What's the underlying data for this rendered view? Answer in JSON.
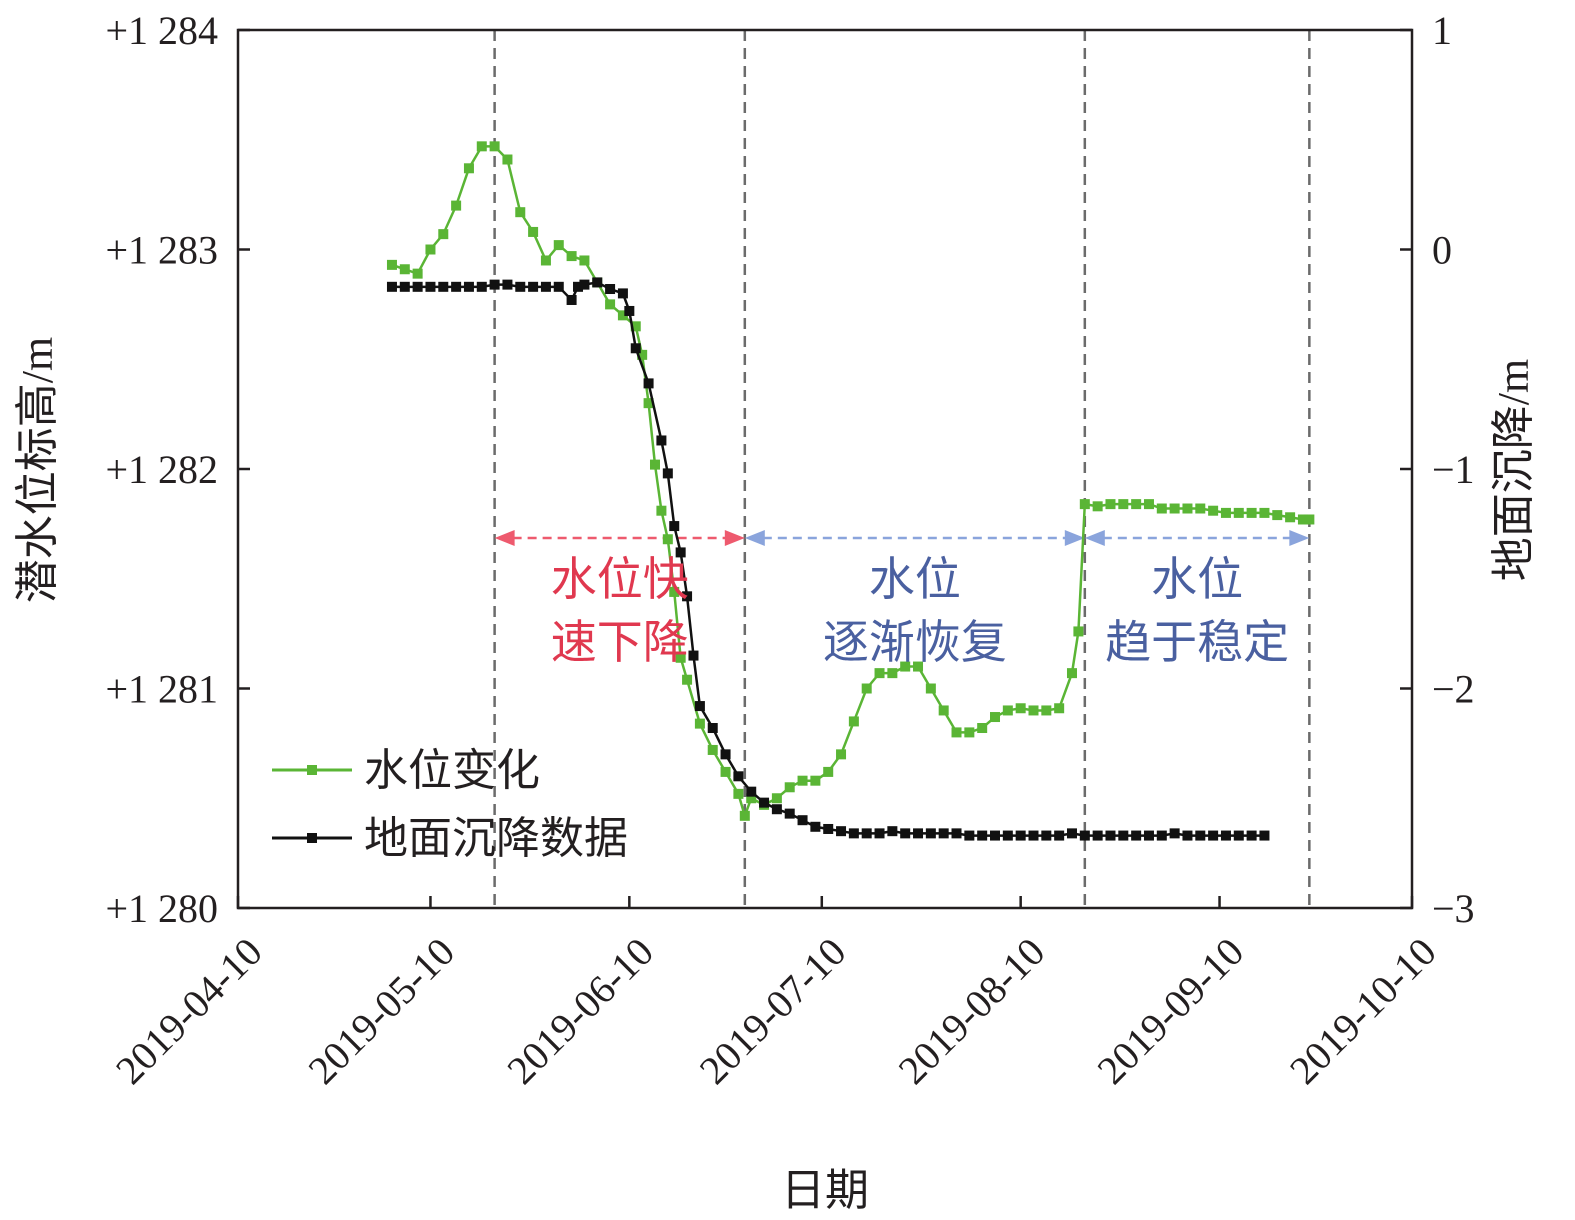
{
  "colors": {
    "water": "#5ab535",
    "settle": "#111111",
    "annot_red": "#e0384f",
    "annot_blue": "#4a60a0",
    "arrow_red": "#ee5a6e",
    "arrow_blue": "#8aa4dc",
    "divider": "#6b6b6b"
  },
  "chart_data": {
    "type": "line",
    "xlabel": "日期",
    "ylabel_left": "潜水位标高/m",
    "ylabel_right": "地面沉降/m",
    "x_ticks": [
      "2019-04-10",
      "2019-05-10",
      "2019-06-10",
      "2019-07-10",
      "2019-08-10",
      "2019-09-10",
      "2019-10-10"
    ],
    "xlim": [
      "2019-04-10",
      "2019-10-10"
    ],
    "y_left_ticks": [
      "+1 280",
      "+1 281",
      "+1 282",
      "+1 283",
      "+1 284"
    ],
    "y_left_lim": [
      1280,
      1284
    ],
    "y_right_ticks": [
      "1",
      "0",
      "−1",
      "−2",
      "−3"
    ],
    "y_right_lim": [
      -3,
      1
    ],
    "dividers": [
      "2019-05-20",
      "2019-06-28",
      "2019-08-20",
      "2019-09-24"
    ],
    "phases": [
      {
        "line1": "水位快",
        "line2": "速下降",
        "from": "2019-05-20",
        "to": "2019-06-28",
        "color": "red"
      },
      {
        "line1": "水位",
        "line2": "逐渐恢复",
        "from": "2019-06-28",
        "to": "2019-08-20",
        "color": "blue"
      },
      {
        "line1": "水位",
        "line2": "趋于稳定",
        "from": "2019-08-20",
        "to": "2019-09-24",
        "color": "blue"
      }
    ],
    "legend": [
      {
        "label": "水位变化",
        "series": "water"
      },
      {
        "label": "地面沉降数据",
        "series": "settle"
      }
    ],
    "legend_position": "lower-left",
    "series": [
      {
        "key": "water",
        "axis": "left",
        "dates": [
          "2019-05-04",
          "2019-05-06",
          "2019-05-08",
          "2019-05-10",
          "2019-05-12",
          "2019-05-14",
          "2019-05-16",
          "2019-05-18",
          "2019-05-20",
          "2019-05-22",
          "2019-05-24",
          "2019-05-26",
          "2019-05-28",
          "2019-05-30",
          "2019-06-01",
          "2019-06-03",
          "2019-06-05",
          "2019-06-07",
          "2019-06-09",
          "2019-06-11",
          "2019-06-12",
          "2019-06-13",
          "2019-06-14",
          "2019-06-15",
          "2019-06-16",
          "2019-06-17",
          "2019-06-18",
          "2019-06-19",
          "2019-06-21",
          "2019-06-23",
          "2019-06-25",
          "2019-06-27",
          "2019-06-28",
          "2019-06-29",
          "2019-07-01",
          "2019-07-03",
          "2019-07-05",
          "2019-07-07",
          "2019-07-09",
          "2019-07-11",
          "2019-07-13",
          "2019-07-15",
          "2019-07-17",
          "2019-07-19",
          "2019-07-21",
          "2019-07-23",
          "2019-07-25",
          "2019-07-27",
          "2019-07-29",
          "2019-07-31",
          "2019-08-02",
          "2019-08-04",
          "2019-08-06",
          "2019-08-08",
          "2019-08-10",
          "2019-08-12",
          "2019-08-14",
          "2019-08-16",
          "2019-08-18",
          "2019-08-19",
          "2019-08-20",
          "2019-08-22",
          "2019-08-24",
          "2019-08-26",
          "2019-08-28",
          "2019-08-30",
          "2019-09-01",
          "2019-09-03",
          "2019-09-05",
          "2019-09-07",
          "2019-09-09",
          "2019-09-11",
          "2019-09-13",
          "2019-09-15",
          "2019-09-17",
          "2019-09-19",
          "2019-09-21",
          "2019-09-23",
          "2019-09-24"
        ],
        "values": [
          1282.93,
          1282.91,
          1282.89,
          1283.0,
          1283.07,
          1283.2,
          1283.37,
          1283.47,
          1283.47,
          1283.41,
          1283.17,
          1283.08,
          1282.95,
          1283.02,
          1282.97,
          1282.95,
          1282.85,
          1282.75,
          1282.7,
          1282.65,
          1282.52,
          1282.3,
          1282.02,
          1281.81,
          1281.68,
          1281.44,
          1281.14,
          1281.04,
          1280.84,
          1280.72,
          1280.62,
          1280.52,
          1280.42,
          1280.5,
          1280.47,
          1280.5,
          1280.55,
          1280.58,
          1280.58,
          1280.62,
          1280.7,
          1280.85,
          1281.0,
          1281.07,
          1281.07,
          1281.1,
          1281.1,
          1281.0,
          1280.9,
          1280.8,
          1280.8,
          1280.82,
          1280.87,
          1280.9,
          1280.91,
          1280.9,
          1280.9,
          1280.91,
          1281.07,
          1281.26,
          1281.84,
          1281.83,
          1281.84,
          1281.84,
          1281.84,
          1281.84,
          1281.82,
          1281.82,
          1281.82,
          1281.82,
          1281.81,
          1281.8,
          1281.8,
          1281.8,
          1281.8,
          1281.79,
          1281.78,
          1281.77,
          1281.77
        ]
      },
      {
        "key": "settle",
        "axis": "right",
        "dates": [
          "2019-05-04",
          "2019-05-06",
          "2019-05-08",
          "2019-05-10",
          "2019-05-12",
          "2019-05-14",
          "2019-05-16",
          "2019-05-18",
          "2019-05-20",
          "2019-05-22",
          "2019-05-24",
          "2019-05-26",
          "2019-05-28",
          "2019-05-30",
          "2019-06-01",
          "2019-06-02",
          "2019-06-03",
          "2019-06-05",
          "2019-06-07",
          "2019-06-09",
          "2019-06-10",
          "2019-06-11",
          "2019-06-13",
          "2019-06-15",
          "2019-06-16",
          "2019-06-17",
          "2019-06-18",
          "2019-06-19",
          "2019-06-20",
          "2019-06-21",
          "2019-06-23",
          "2019-06-25",
          "2019-06-27",
          "2019-06-29",
          "2019-07-01",
          "2019-07-03",
          "2019-07-05",
          "2019-07-07",
          "2019-07-09",
          "2019-07-11",
          "2019-07-13",
          "2019-07-15",
          "2019-07-17",
          "2019-07-19",
          "2019-07-21",
          "2019-07-23",
          "2019-07-25",
          "2019-07-27",
          "2019-07-29",
          "2019-07-31",
          "2019-08-02",
          "2019-08-04",
          "2019-08-06",
          "2019-08-08",
          "2019-08-10",
          "2019-08-12",
          "2019-08-14",
          "2019-08-16",
          "2019-08-18",
          "2019-08-20",
          "2019-08-22",
          "2019-08-24",
          "2019-08-26",
          "2019-08-28",
          "2019-08-30",
          "2019-09-01",
          "2019-09-03",
          "2019-09-05",
          "2019-09-07",
          "2019-09-09",
          "2019-09-11",
          "2019-09-13",
          "2019-09-15",
          "2019-09-17"
        ],
        "values": [
          -0.17,
          -0.17,
          -0.17,
          -0.17,
          -0.17,
          -0.17,
          -0.17,
          -0.17,
          -0.16,
          -0.16,
          -0.17,
          -0.17,
          -0.17,
          -0.17,
          -0.23,
          -0.17,
          -0.16,
          -0.15,
          -0.18,
          -0.2,
          -0.28,
          -0.45,
          -0.61,
          -0.87,
          -1.02,
          -1.26,
          -1.38,
          -1.58,
          -1.85,
          -2.08,
          -2.18,
          -2.3,
          -2.4,
          -2.47,
          -2.52,
          -2.55,
          -2.57,
          -2.6,
          -2.63,
          -2.64,
          -2.65,
          -2.66,
          -2.66,
          -2.66,
          -2.65,
          -2.66,
          -2.66,
          -2.66,
          -2.66,
          -2.66,
          -2.67,
          -2.67,
          -2.67,
          -2.67,
          -2.67,
          -2.67,
          -2.67,
          -2.67,
          -2.66,
          -2.67,
          -2.67,
          -2.67,
          -2.67,
          -2.67,
          -2.67,
          -2.67,
          -2.66,
          -2.67,
          -2.67,
          -2.67,
          -2.67,
          -2.67,
          -2.67,
          -2.67
        ]
      }
    ]
  }
}
